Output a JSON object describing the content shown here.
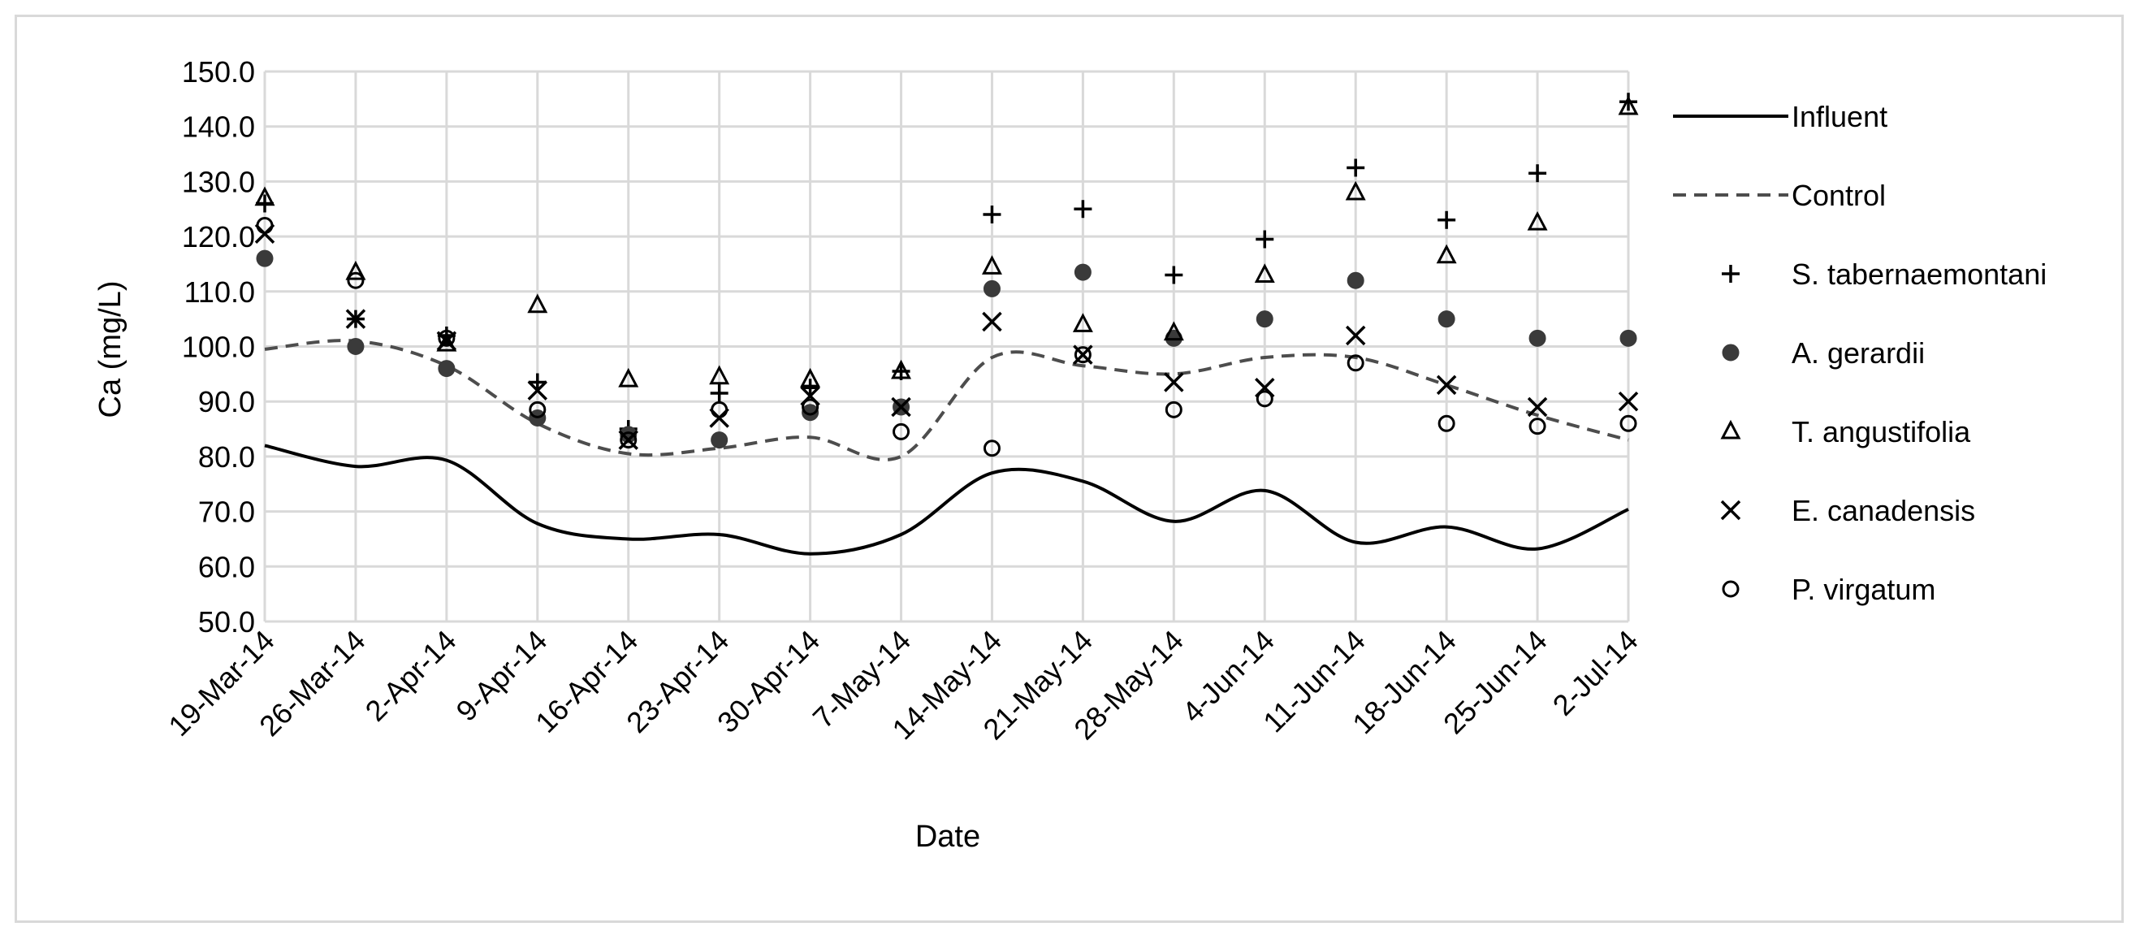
{
  "chart_data": {
    "type": "line",
    "title": "",
    "xlabel": "Date",
    "ylabel": "Ca (mg/L)",
    "ylim": [
      50,
      150
    ],
    "yticks": [
      "50.0",
      "60.0",
      "70.0",
      "80.0",
      "90.0",
      "100.0",
      "110.0",
      "120.0",
      "130.0",
      "140.0",
      "150.0"
    ],
    "grid": true,
    "legend_position": "right",
    "categories": [
      "19-Mar-14",
      "26-Mar-14",
      "2-Apr-14",
      "9-Apr-14",
      "16-Apr-14",
      "23-Apr-14",
      "30-Apr-14",
      "7-May-14",
      "14-May-14",
      "21-May-14",
      "28-May-14",
      "4-Jun-14",
      "11-Jun-14",
      "18-Jun-14",
      "25-Jun-14",
      "2-Jul-14"
    ],
    "series": [
      {
        "name": "Influent",
        "style": "solid-line",
        "values": [
          82.0,
          78.2,
          79.3,
          67.8,
          65.0,
          65.8,
          62.3,
          65.8,
          77.0,
          75.5,
          68.2,
          73.8,
          64.4,
          67.2,
          63.2,
          70.4
        ]
      },
      {
        "name": "Control",
        "style": "dashed-line",
        "values": [
          99.5,
          101.0,
          96.5,
          86.0,
          80.5,
          81.5,
          83.5,
          80.0,
          98.0,
          96.5,
          95.0,
          98.0,
          98.0,
          93.0,
          87.5,
          83.0
        ]
      },
      {
        "name": "S. tabernaemontani",
        "style": "plus-marker",
        "values": [
          126.0,
          105.0,
          102.0,
          93.5,
          85.0,
          91.5,
          92.5,
          95.5,
          124.0,
          125.0,
          113.0,
          119.5,
          132.5,
          123.0,
          131.5,
          144.5
        ]
      },
      {
        "name": "A. gerardii",
        "style": "filled-circle",
        "values": [
          116.0,
          100.0,
          96.0,
          87.0,
          84.0,
          83.0,
          88.0,
          89.0,
          110.5,
          113.5,
          101.5,
          105.0,
          112.0,
          105.0,
          101.5,
          101.5
        ]
      },
      {
        "name": "T. angustifolia",
        "style": "open-triangle",
        "values": [
          127.0,
          113.5,
          100.5,
          107.5,
          94.0,
          94.5,
          94.0,
          95.5,
          114.5,
          104.0,
          102.5,
          113.0,
          128.0,
          116.5,
          122.5,
          143.5
        ]
      },
      {
        "name": "E. canadensis",
        "style": "x-marker",
        "values": [
          120.5,
          105.0,
          101.0,
          92.0,
          83.0,
          87.0,
          91.0,
          89.0,
          104.5,
          98.5,
          93.5,
          92.5,
          102.0,
          93.0,
          89.0,
          90.0
        ]
      },
      {
        "name": "P. virgatum",
        "style": "open-circle",
        "values": [
          122.0,
          112.0,
          101.5,
          88.5,
          83.0,
          88.5,
          89.0,
          84.5,
          81.5,
          98.5,
          88.5,
          90.5,
          97.0,
          86.0,
          85.5,
          86.0
        ]
      }
    ]
  }
}
